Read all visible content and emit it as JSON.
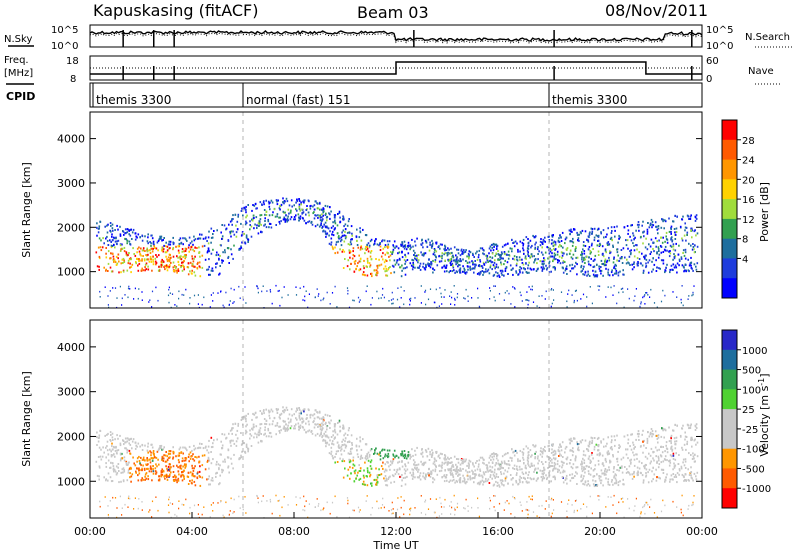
{
  "header": {
    "station": "Kapuskasing (fitACF)",
    "beam": "Beam 03",
    "date": "08/Nov/2011"
  },
  "panels": {
    "nsky_label": "N.Sky",
    "nsearch_label": "N.Search",
    "freq_label_1": "Freq.",
    "freq_label_2": "[MHz]",
    "nave_label": "Nave",
    "cpid_label": "CPID",
    "noise_ticks": [
      "10^5",
      "10^0"
    ],
    "freq_ticks_left": [
      "18",
      "8"
    ],
    "nave_ticks_right": [
      "60",
      "0"
    ]
  },
  "cpid_segments": [
    {
      "label": "themis 3300",
      "start_hour": 0
    },
    {
      "label": "normal (fast) 151",
      "start_hour": 6
    },
    {
      "label": "themis 3300",
      "start_hour": 18
    }
  ],
  "power_colorbar": {
    "label": "Power [dB]",
    "ticks": [
      "28",
      "24",
      "20",
      "16",
      "12",
      "8",
      "4"
    ],
    "colors": [
      "#ff0000",
      "#ff5a00",
      "#ff9600",
      "#ffd200",
      "#a0dc3c",
      "#32a050",
      "#1e6e9e",
      "#1e3cdc",
      "#0000ff"
    ]
  },
  "velocity_colorbar": {
    "label": "Velocity [m s",
    "label_sup": "-1",
    "label_end": "]",
    "ticks": [
      "1000",
      "500",
      "100",
      "25",
      "-25",
      "-100",
      "-500",
      "-1000"
    ],
    "colors": [
      "#2828c8",
      "#1e6e9e",
      "#32a050",
      "#50d232",
      "#c8c8c8",
      "#c8c8c8",
      "#ff9600",
      "#ff5a00",
      "#ff0000"
    ]
  },
  "chart_data": {
    "type": "heatmap",
    "xlabel": "Time UT",
    "x_ticks": [
      "00:00",
      "04:00",
      "08:00",
      "12:00",
      "16:00",
      "20:00",
      "00:00"
    ],
    "xlim_hours": [
      0,
      24
    ],
    "ylabel": "Slant Range [km]",
    "y_ticks": [
      "1000",
      "2000",
      "3000",
      "4000"
    ],
    "ylim_km": [
      180,
      4600
    ],
    "power_echo_bands": [
      {
        "band": "main",
        "t": [
          0.2,
          1,
          2,
          3,
          4,
          5,
          6,
          7,
          8,
          9,
          10,
          11,
          12,
          13,
          14,
          15,
          16,
          17,
          18,
          19,
          20,
          21,
          22,
          23,
          23.8
        ],
        "low_km": [
          1050,
          1000,
          1000,
          1050,
          900,
          900,
          1600,
          2000,
          2200,
          2000,
          1000,
          900,
          900,
          1000,
          1000,
          950,
          900,
          950,
          1000,
          950,
          900,
          950,
          1000,
          1000,
          1000
        ],
        "high_km": [
          2200,
          2100,
          1900,
          1800,
          1800,
          2100,
          2500,
          2650,
          2700,
          2600,
          2300,
          1800,
          1700,
          1800,
          1600,
          1500,
          1700,
          1800,
          1900,
          2000,
          2000,
          2100,
          2200,
          2300,
          2300
        ]
      }
    ],
    "power_dB_range": [
      4,
      30
    ],
    "velocity_range_ms": [
      -1000,
      1000
    ]
  }
}
